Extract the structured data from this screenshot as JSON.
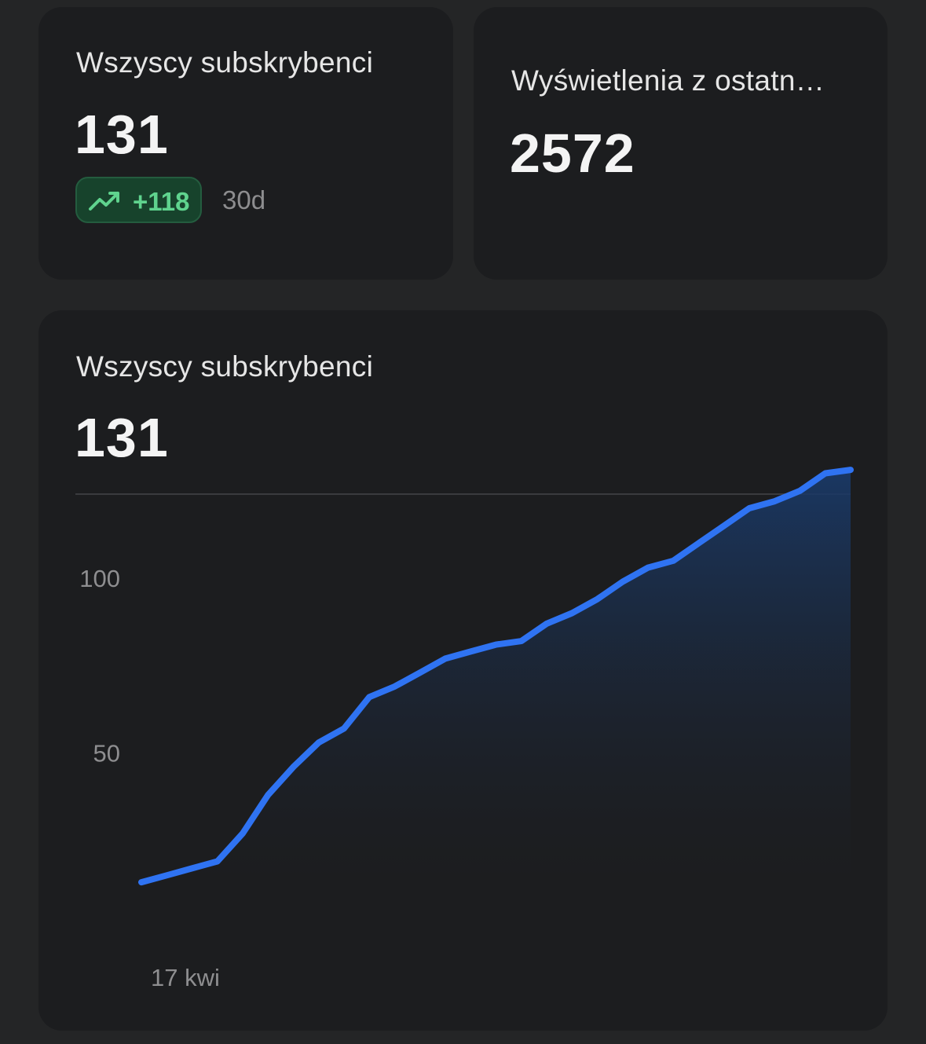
{
  "cards": {
    "subscribers": {
      "title": "Wszyscy subskrybenci",
      "value": "131",
      "change": "+118",
      "period": "30d",
      "change_color": "#5fd38e",
      "trend_icon": "trending-up-icon"
    },
    "views": {
      "title": "Wyświetlenia z ostatn…",
      "value": "2572"
    }
  },
  "chart_card": {
    "title": "Wszyscy subskrybenci",
    "value": "131"
  },
  "chart_data": {
    "type": "area",
    "x_labels": [
      "17 kwi"
    ],
    "y_ticks": [
      50,
      100
    ],
    "ylim": [
      10,
      140
    ],
    "line_color": "#2f73f2",
    "values": [
      13,
      15,
      17,
      19,
      27,
      38,
      46,
      53,
      57,
      66,
      69,
      73,
      77,
      79,
      81,
      82,
      87,
      90,
      94,
      99,
      103,
      105,
      110,
      115,
      120,
      122,
      125,
      130,
      131
    ],
    "grid": "top-line-only",
    "legend": "none"
  }
}
